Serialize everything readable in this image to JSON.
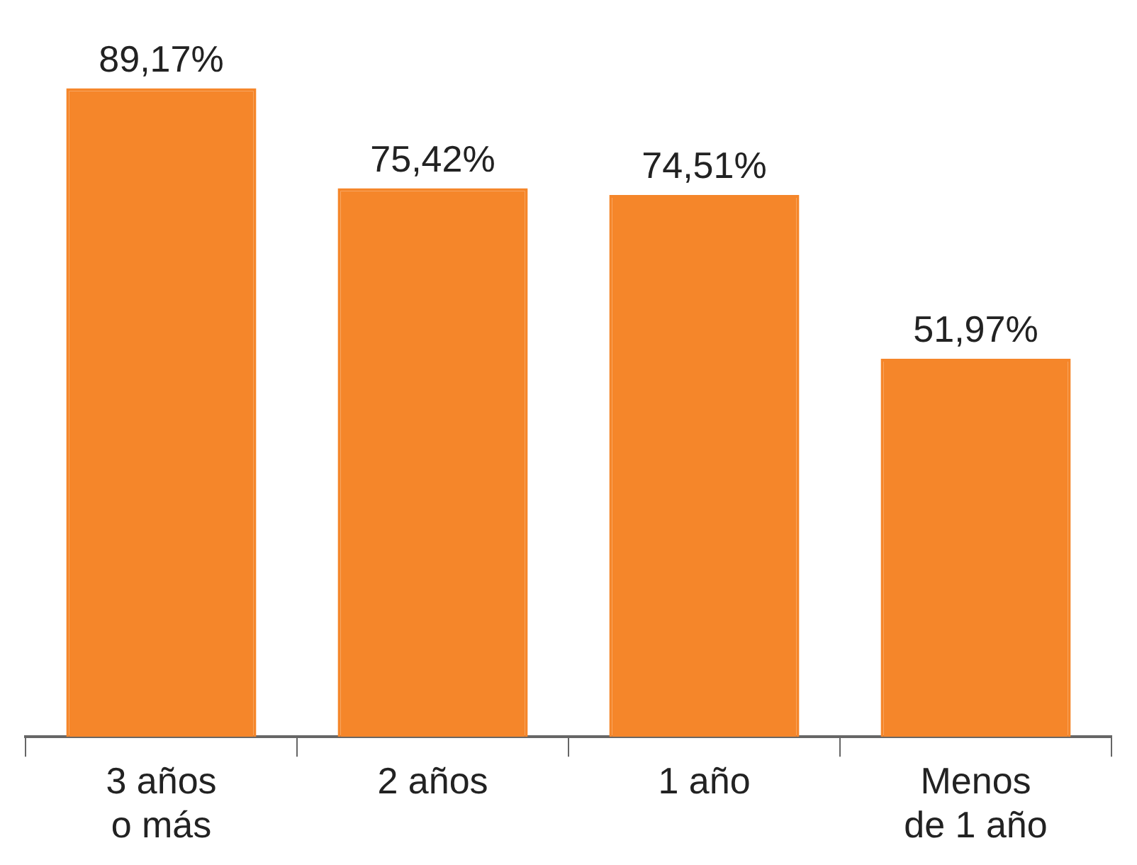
{
  "chart_data": {
    "type": "bar",
    "categories": [
      "3 años\no más",
      "2 años",
      "1 año",
      "Menos\nde 1 año"
    ],
    "values": [
      89.17,
      75.42,
      74.51,
      51.97
    ],
    "value_labels": [
      "89,17%",
      "75,42%",
      "74,51%",
      "51,97%"
    ],
    "color": "#f5862a",
    "tick_labels": "x",
    "legend": false
  }
}
